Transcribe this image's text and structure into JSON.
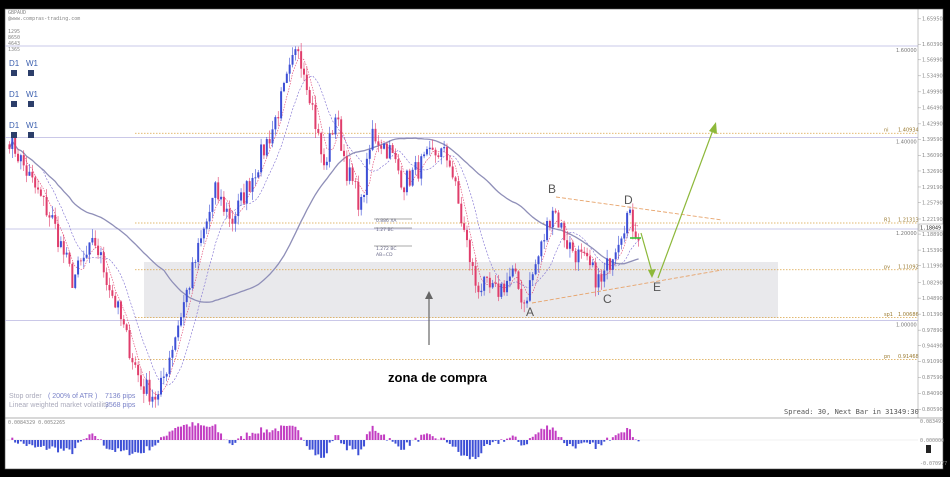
{
  "header": {
    "symbol": "GBPAUD",
    "site": "@www.compras-trading.com",
    "indicator_values": [
      "1295",
      "8650",
      "4643",
      "1365"
    ]
  },
  "timeframe_badges": [
    {
      "a": "D1",
      "b": "W1"
    },
    {
      "a": "D1",
      "b": "W1"
    },
    {
      "a": "D1",
      "b": "W1"
    }
  ],
  "right_axis": {
    "ticks": [
      "1.65950",
      "1.60390",
      "1.56990",
      "1.53490",
      "1.49990",
      "1.46490",
      "1.42990",
      "1.39590",
      "1.36090",
      "1.32690",
      "1.29190",
      "1.25790",
      "1.22190",
      "1.18890",
      "1.15390",
      "1.11990",
      "1.08290",
      "1.04890",
      "1.01390",
      "0.97890",
      "0.94490",
      "0.91090",
      "0.87590",
      "0.84090",
      "0.80590"
    ],
    "current_price": "1.18049",
    "round_levels": [
      "1.60000",
      "1.40000",
      "1.20000",
      "1.00000"
    ]
  },
  "price_levels": [
    {
      "label": "ni",
      "value": "1.40934"
    },
    {
      "label": "R1",
      "value": "1.21313"
    },
    {
      "label": "pv",
      "value": "1.11092"
    },
    {
      "label": "sp1",
      "value": "1.00686"
    },
    {
      "label": "pn",
      "value": "0.91468"
    }
  ],
  "fib_labels": [
    "0.886 XA",
    "1.27 BC",
    "1.272 BC",
    "AB=CD"
  ],
  "wave_labels": {
    "A": "A",
    "B": "B",
    "C": "C",
    "D": "D",
    "E": "E"
  },
  "annotation": {
    "zone": "zona de compra"
  },
  "stop_order": {
    "line1": "Stop order",
    "atr": "( 200% of ATR )",
    "pips1": "7136 pips",
    "line2": "Linear weighted market volatility",
    "pips2": "3568 pips"
  },
  "spread_text": "Spread: 30, Next Bar in 31349:30",
  "oscillator": {
    "label": "0.0084329 0.0052265",
    "axis_ticks": [
      "0.083491",
      "0.000000",
      "-0.070977"
    ]
  },
  "colors": {
    "bull_candle": "#3d4fd6",
    "bear_candle": "#e03d6b",
    "level_line": "#d9a243",
    "round_line": "#b9b6e0",
    "projection_arrow": "#8db83a",
    "zone_fill": "#e9e9ec"
  },
  "chart_data": {
    "type": "candlestick",
    "y_range": [
      0.8,
      1.67
    ],
    "price_path": [
      {
        "i": 0,
        "v": 1.4
      },
      {
        "i": 8,
        "v": 1.3
      },
      {
        "i": 15,
        "v": 1.22
      },
      {
        "i": 22,
        "v": 1.09
      },
      {
        "i": 30,
        "v": 1.17
      },
      {
        "i": 38,
        "v": 1.02
      },
      {
        "i": 46,
        "v": 0.86
      },
      {
        "i": 52,
        "v": 0.83
      },
      {
        "i": 58,
        "v": 0.97
      },
      {
        "i": 65,
        "v": 1.13
      },
      {
        "i": 72,
        "v": 1.28
      },
      {
        "i": 78,
        "v": 1.22
      },
      {
        "i": 86,
        "v": 1.33
      },
      {
        "i": 92,
        "v": 1.42
      },
      {
        "i": 97,
        "v": 1.52
      },
      {
        "i": 101,
        "v": 1.6
      },
      {
        "i": 105,
        "v": 1.5
      },
      {
        "i": 110,
        "v": 1.33
      },
      {
        "i": 114,
        "v": 1.45
      },
      {
        "i": 118,
        "v": 1.33
      },
      {
        "i": 123,
        "v": 1.25
      },
      {
        "i": 127,
        "v": 1.41
      },
      {
        "i": 133,
        "v": 1.37
      },
      {
        "i": 138,
        "v": 1.3
      },
      {
        "i": 144,
        "v": 1.34
      },
      {
        "i": 150,
        "v": 1.37
      },
      {
        "i": 154,
        "v": 1.35
      },
      {
        "i": 158,
        "v": 1.22
      },
      {
        "i": 163,
        "v": 1.08
      },
      {
        "i": 170,
        "v": 1.06
      },
      {
        "i": 176,
        "v": 1.1
      },
      {
        "i": 180,
        "v": 1.04
      },
      {
        "i": 186,
        "v": 1.16
      },
      {
        "i": 190,
        "v": 1.25
      },
      {
        "i": 195,
        "v": 1.17
      },
      {
        "i": 202,
        "v": 1.12
      },
      {
        "i": 207,
        "v": 1.08
      },
      {
        "i": 212,
        "v": 1.17
      },
      {
        "i": 216,
        "v": 1.23
      },
      {
        "i": 220,
        "v": 1.19
      }
    ]
  }
}
